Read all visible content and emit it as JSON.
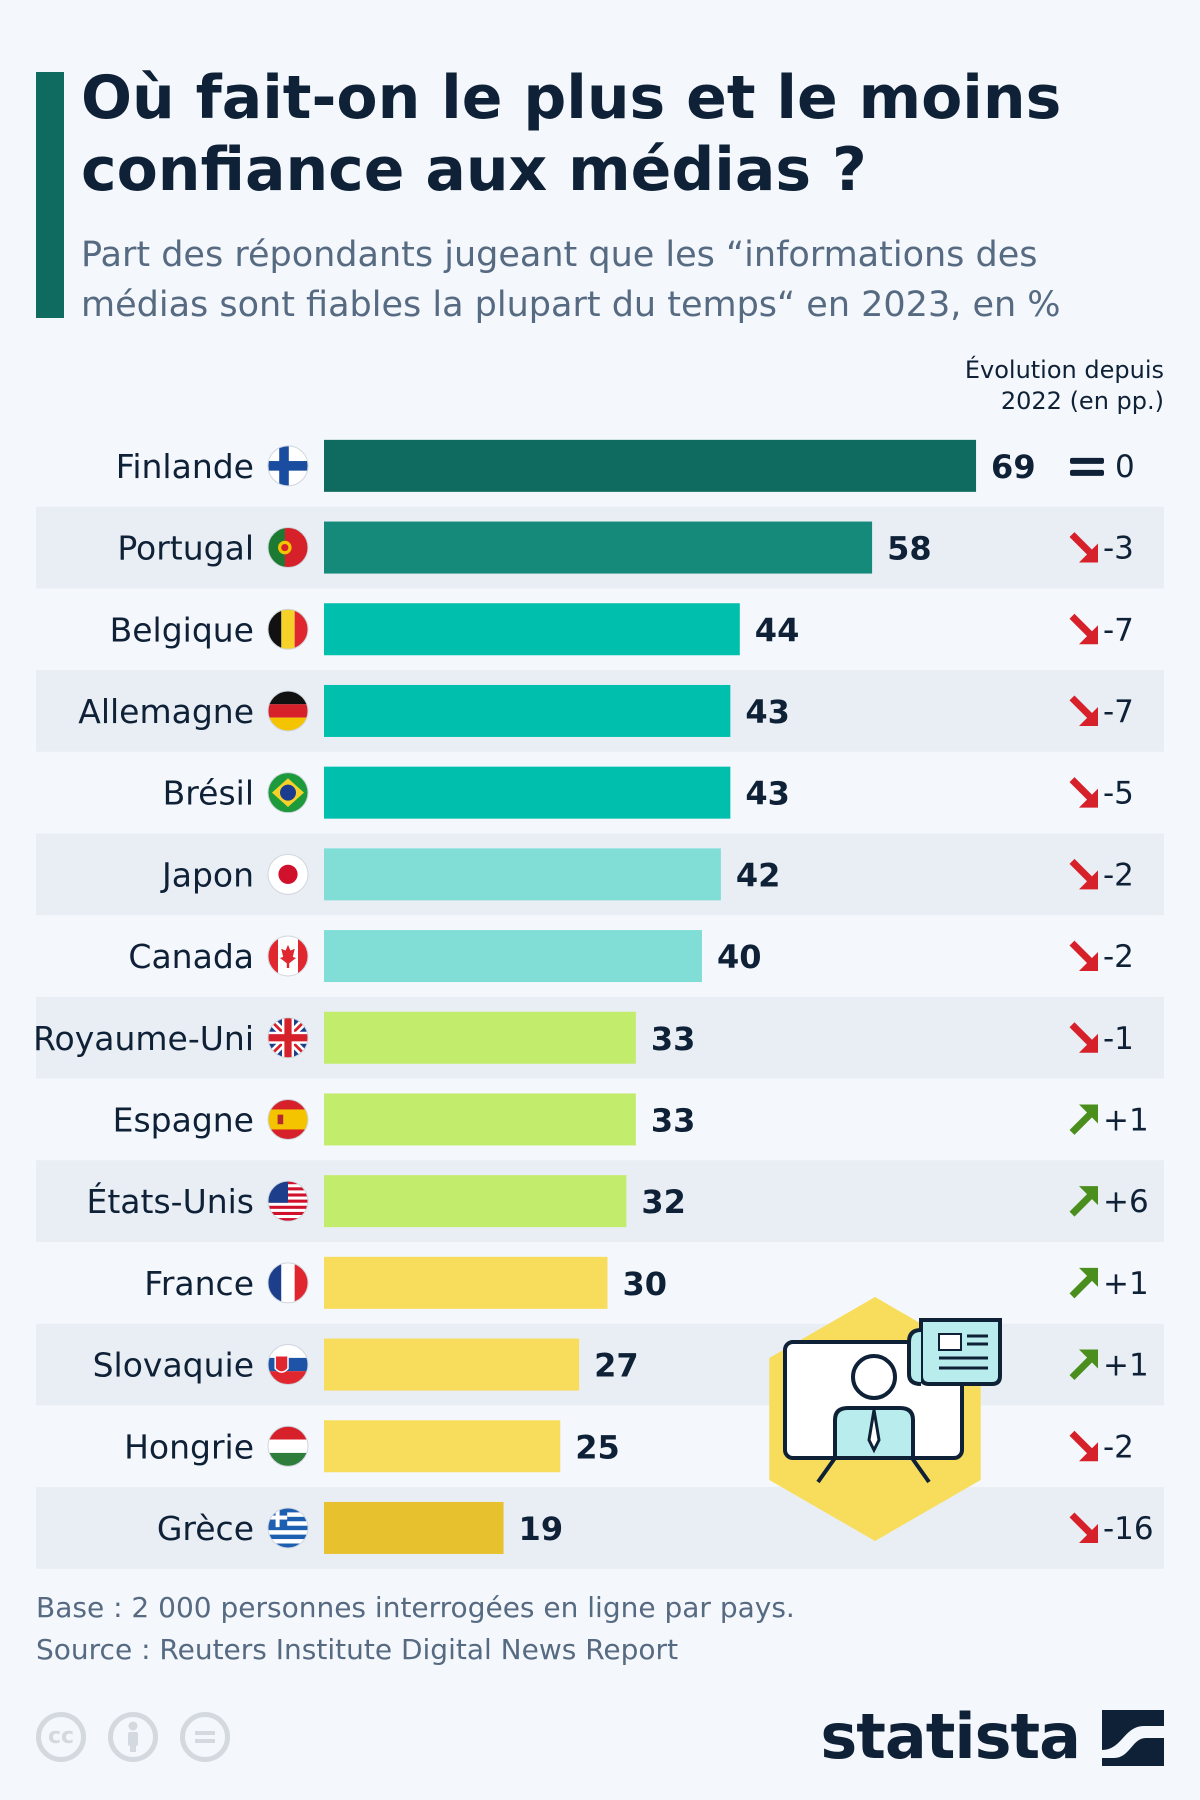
{
  "title": "Où fait-on le plus et le moins confiance aux médias ?",
  "subtitle": "Part des répondants jugeant que les “informations des médias sont fiables la plupart du temps“ en 2023, en %",
  "evolution_header": "Évolution depuis 2022 (en pp.)",
  "chart_data": {
    "type": "bar",
    "orientation": "horizontal",
    "title": "Où fait-on le plus et le moins confiance aux médias ?",
    "unit": "%",
    "xlim": [
      0,
      70
    ],
    "categories": [
      "Finlande",
      "Portugal",
      "Belgique",
      "Allemagne",
      "Brésil",
      "Japon",
      "Canada",
      "Royaume-Uni",
      "Espagne",
      "États-Unis",
      "France",
      "Slovaquie",
      "Hongrie",
      "Grèce"
    ],
    "values": [
      69,
      58,
      44,
      43,
      43,
      42,
      40,
      33,
      33,
      32,
      30,
      27,
      25,
      19
    ],
    "changes": [
      "0",
      "-3",
      "-7",
      "-7",
      "-5",
      "-2",
      "-2",
      "-1",
      "+1",
      "+6",
      "+1",
      "+1",
      "-2",
      "-16"
    ],
    "trend": [
      "equal",
      "down",
      "down",
      "down",
      "down",
      "down",
      "down",
      "down",
      "up",
      "up",
      "up",
      "up",
      "down",
      "down"
    ],
    "bar_colors": [
      "#0f6b5f",
      "#15897a",
      "#00bfad",
      "#00bfad",
      "#00bfad",
      "#80ded7",
      "#80ded7",
      "#c2ec6c",
      "#c2ec6c",
      "#c2ec6c",
      "#f8dd5c",
      "#f8dd5c",
      "#f8dd5c",
      "#e8c22e"
    ],
    "flags": [
      "flag-finland",
      "flag-portugal",
      "flag-belgium",
      "flag-germany",
      "flag-brazil",
      "flag-japan",
      "flag-canada",
      "flag-uk",
      "flag-spain",
      "flag-usa",
      "flag-france",
      "flag-slovakia",
      "flag-hungary",
      "flag-greece"
    ]
  },
  "colors": {
    "up": "#4a8f1d",
    "down": "#d6202a",
    "equal": "#0f2137",
    "stripe": "#e9eef5"
  },
  "footnotes": {
    "base": "Base : 2 000 personnes interrogées en ligne par pays.",
    "source": "Source : Reuters Institute Digital News Report"
  },
  "brand": "statista",
  "license_icons": [
    "cc-icon",
    "by-icon",
    "nd-icon"
  ]
}
